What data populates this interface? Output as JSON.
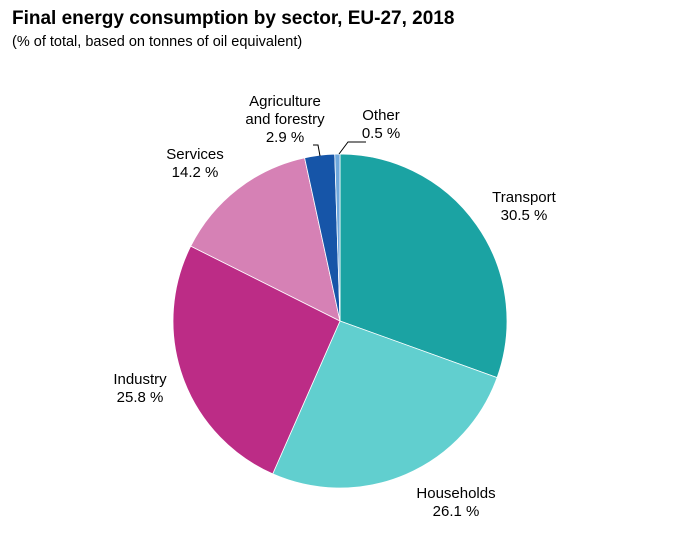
{
  "chart_data": {
    "type": "pie",
    "title": "Final energy consumption by sector, EU-27, 2018",
    "subtitle": "(% of total, based on tonnes of oil equivalent)",
    "unit": "%",
    "slices": [
      {
        "name": "Transport",
        "name_lines": [
          "Transport"
        ],
        "value": 30.5,
        "value_label": "30.5 %",
        "color": "#1BA3A3"
      },
      {
        "name": "Households",
        "name_lines": [
          "Households"
        ],
        "value": 26.1,
        "value_label": "26.1 %",
        "color": "#61CFCF"
      },
      {
        "name": "Industry",
        "name_lines": [
          "Industry"
        ],
        "value": 25.8,
        "value_label": "25.8 %",
        "color": "#BC2C86"
      },
      {
        "name": "Services",
        "name_lines": [
          "Services"
        ],
        "value": 14.2,
        "value_label": "14.2 %",
        "color": "#D681B5"
      },
      {
        "name": "Agriculture and forestry",
        "name_lines": [
          "Agriculture",
          "and forestry"
        ],
        "value": 2.9,
        "value_label": "2.9 %",
        "color": "#1655A8"
      },
      {
        "name": "Other",
        "name_lines": [
          "Other"
        ],
        "value": 0.5,
        "value_label": "0.5 %",
        "color": "#6FA8DC"
      }
    ]
  }
}
